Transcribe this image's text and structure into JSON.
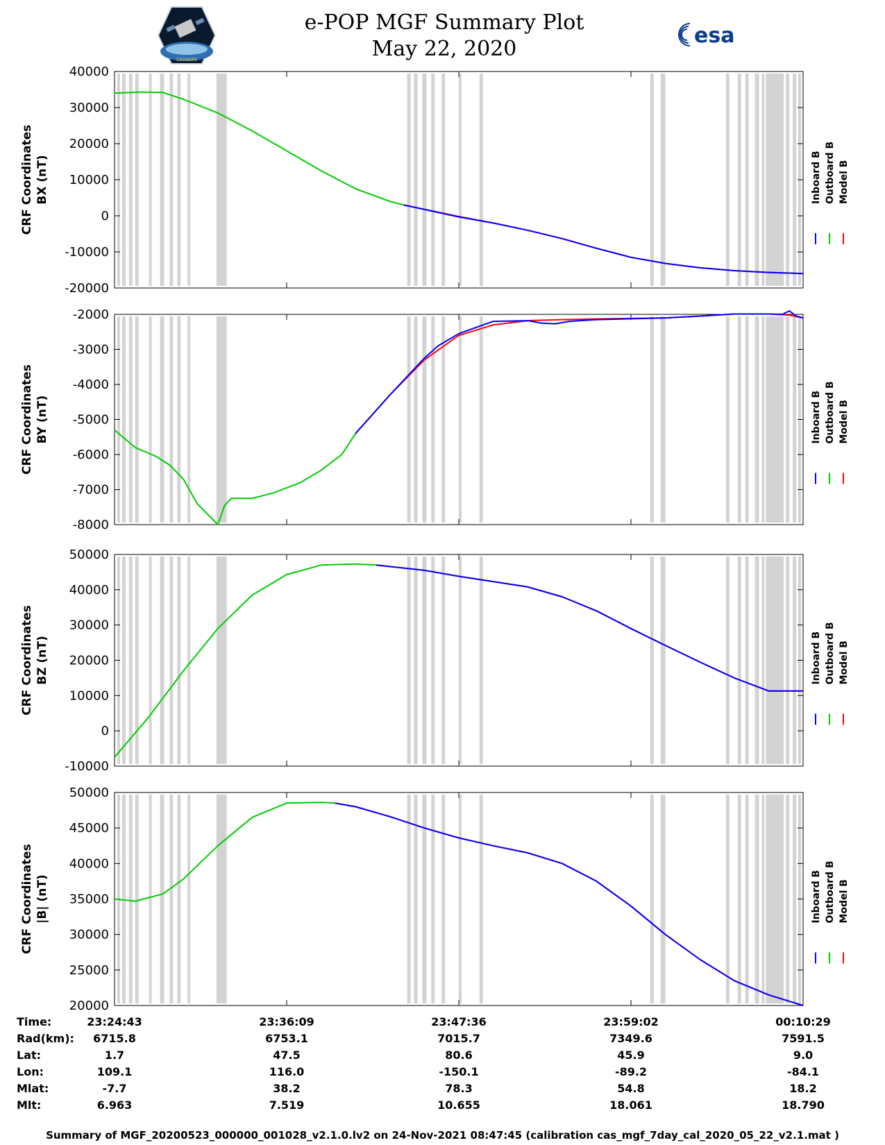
{
  "title": "e-POP MGF Summary Plot",
  "date": "May 22, 2020",
  "esa_logo_text": "esa",
  "mission_logo_text": "CASSIOPE",
  "colors": {
    "inboard": "#0000ff",
    "outboard": "#00cc00",
    "model": "#ff0000",
    "gap_shading": "#d3d3d3"
  },
  "chart_data": [
    {
      "type": "line",
      "id": "bx",
      "ylabel": "CRF Coordinates",
      "ylabel2": "BX (nT)",
      "ylim": [
        -20000,
        40000
      ],
      "yticks": [
        40000,
        30000,
        20000,
        10000,
        0,
        -10000,
        -20000
      ],
      "legend": [
        "Inboard B",
        "Outboard B",
        "Model B"
      ],
      "series": [
        {
          "name": "Outboard B",
          "x": [
            0,
            0.04,
            0.07,
            0.1,
            0.15,
            0.2,
            0.25,
            0.3,
            0.35,
            0.4,
            0.42
          ],
          "values": [
            34000,
            34300,
            34200,
            32300,
            28500,
            23500,
            18000,
            12500,
            7500,
            4000,
            3000
          ]
        },
        {
          "name": "Model B",
          "x": [
            0.42,
            0.5,
            0.55,
            0.6,
            0.65,
            0.7,
            0.75,
            0.8,
            0.85,
            0.9,
            0.95,
            1.0
          ],
          "values": [
            3000,
            -200,
            -2000,
            -4000,
            -6300,
            -9000,
            -11500,
            -13200,
            -14400,
            -15200,
            -15700,
            -16000
          ]
        },
        {
          "name": "Inboard B",
          "x": [
            0.42,
            0.5,
            0.55,
            0.6,
            0.65,
            0.7,
            0.75,
            0.8,
            0.85,
            0.9,
            0.95,
            1.0
          ],
          "values": [
            3000,
            -300,
            -2000,
            -4000,
            -6300,
            -9000,
            -11500,
            -13200,
            -14400,
            -15200,
            -15700,
            -16000
          ]
        }
      ]
    },
    {
      "type": "line",
      "id": "by",
      "ylabel": "CRF Coordinates",
      "ylabel2": "BY (nT)",
      "ylim": [
        -8000,
        -2000
      ],
      "yticks": [
        -2000,
        -3000,
        -4000,
        -5000,
        -6000,
        -7000,
        -8000
      ],
      "legend": [
        "Inboard B",
        "Outboard B",
        "Model B"
      ],
      "series": [
        {
          "name": "Outboard B",
          "x": [
            0,
            0.03,
            0.06,
            0.08,
            0.1,
            0.12,
            0.15,
            0.16,
            0.17,
            0.2,
            0.23,
            0.27,
            0.3,
            0.33,
            0.35
          ],
          "values": [
            -5300,
            -5800,
            -6050,
            -6300,
            -6700,
            -7400,
            -8000,
            -7450,
            -7250,
            -7250,
            -7100,
            -6800,
            -6450,
            -6000,
            -5400
          ]
        },
        {
          "name": "Model B",
          "x": [
            0.35,
            0.4,
            0.45,
            0.5,
            0.55,
            0.6,
            0.65,
            0.7,
            0.8,
            0.85,
            0.9,
            0.95,
            0.98,
            1.0
          ],
          "values": [
            -5400,
            -4300,
            -3300,
            -2600,
            -2300,
            -2180,
            -2150,
            -2130,
            -2100,
            -2050,
            -1990,
            -1990,
            -2020,
            -2100
          ]
        },
        {
          "name": "Inboard B",
          "x": [
            0.35,
            0.4,
            0.45,
            0.47,
            0.5,
            0.55,
            0.6,
            0.62,
            0.64,
            0.66,
            0.7,
            0.8,
            0.85,
            0.9,
            0.95,
            0.97,
            0.98,
            0.99,
            1.0
          ],
          "values": [
            -5400,
            -4300,
            -3250,
            -2900,
            -2550,
            -2200,
            -2180,
            -2250,
            -2270,
            -2200,
            -2150,
            -2100,
            -2050,
            -1990,
            -1990,
            -2000,
            -1900,
            -2050,
            -2100
          ]
        }
      ]
    },
    {
      "type": "line",
      "id": "bz",
      "ylabel": "CRF Coordinates",
      "ylabel2": "BZ (nT)",
      "ylim": [
        -10000,
        50000
      ],
      "yticks": [
        50000,
        40000,
        30000,
        20000,
        10000,
        0,
        -10000
      ],
      "legend": [
        "Inboard B",
        "Outboard B",
        "Model B"
      ],
      "series": [
        {
          "name": "Outboard B",
          "x": [
            0,
            0.05,
            0.1,
            0.15,
            0.2,
            0.25,
            0.3,
            0.35,
            0.38
          ],
          "values": [
            -7500,
            4000,
            17000,
            29000,
            38500,
            44300,
            47000,
            47300,
            47000
          ]
        },
        {
          "name": "Model B",
          "x": [
            0.38,
            0.45,
            0.5,
            0.55,
            0.6,
            0.65,
            0.7,
            0.75,
            0.8,
            0.85,
            0.9,
            0.95,
            1.0
          ],
          "values": [
            47000,
            45500,
            43800,
            42300,
            40800,
            38000,
            34000,
            29000,
            24200,
            19500,
            15000,
            11300,
            11300
          ]
        },
        {
          "name": "Inboard B",
          "x": [
            0.38,
            0.45,
            0.5,
            0.55,
            0.6,
            0.65,
            0.7,
            0.75,
            0.8,
            0.85,
            0.9,
            0.95,
            1.0
          ],
          "values": [
            47000,
            45500,
            43800,
            42300,
            40800,
            38000,
            34000,
            29000,
            24200,
            19500,
            15000,
            11300,
            11300
          ]
        }
      ]
    },
    {
      "type": "line",
      "id": "bmag",
      "ylabel": "CRF Coordinates",
      "ylabel2": "|B| (nT)",
      "ylim": [
        20000,
        50000
      ],
      "yticks": [
        50000,
        45000,
        40000,
        35000,
        30000,
        25000,
        20000
      ],
      "legend": [
        "Inboard B",
        "Outboard B",
        "Model B"
      ],
      "series": [
        {
          "name": "Outboard B",
          "x": [
            0,
            0.03,
            0.07,
            0.1,
            0.15,
            0.2,
            0.25,
            0.3,
            0.32
          ],
          "values": [
            35000,
            34700,
            35700,
            37800,
            42500,
            46500,
            48500,
            48600,
            48500
          ]
        },
        {
          "name": "Model B",
          "x": [
            0.32,
            0.35,
            0.4,
            0.45,
            0.5,
            0.55,
            0.6,
            0.65,
            0.7,
            0.75,
            0.8,
            0.85,
            0.9,
            0.95,
            1.0
          ],
          "values": [
            48500,
            48000,
            46600,
            45000,
            43600,
            42500,
            41500,
            40000,
            37500,
            34000,
            30000,
            26500,
            23500,
            21500,
            20000
          ]
        },
        {
          "name": "Inboard B",
          "x": [
            0.32,
            0.35,
            0.4,
            0.45,
            0.5,
            0.55,
            0.6,
            0.65,
            0.7,
            0.75,
            0.8,
            0.85,
            0.9,
            0.95,
            1.0
          ],
          "values": [
            48500,
            48000,
            46600,
            45000,
            43600,
            42500,
            41500,
            40000,
            37500,
            34000,
            30000,
            26500,
            23500,
            21500,
            20000
          ]
        }
      ]
    }
  ],
  "gap_intervals": [
    [
      0.004,
      0.008
    ],
    [
      0.011,
      0.016
    ],
    [
      0.021,
      0.026
    ],
    [
      0.03,
      0.035
    ],
    [
      0.05,
      0.054
    ],
    [
      0.066,
      0.072
    ],
    [
      0.08,
      0.085
    ],
    [
      0.091,
      0.096
    ],
    [
      0.106,
      0.11
    ],
    [
      0.148,
      0.163
    ],
    [
      0.425,
      0.43
    ],
    [
      0.435,
      0.44
    ],
    [
      0.447,
      0.453
    ],
    [
      0.46,
      0.465
    ],
    [
      0.475,
      0.48
    ],
    [
      0.5,
      0.504
    ],
    [
      0.53,
      0.535
    ],
    [
      0.778,
      0.783
    ],
    [
      0.793,
      0.8
    ],
    [
      0.888,
      0.893
    ],
    [
      0.905,
      0.91
    ],
    [
      0.916,
      0.921
    ],
    [
      0.93,
      0.936
    ],
    [
      0.94,
      0.944
    ],
    [
      0.946,
      0.972
    ],
    [
      0.975,
      0.98
    ],
    [
      0.985,
      0.99
    ],
    [
      0.993,
      0.997
    ]
  ],
  "info_table": {
    "labels": [
      "Time:",
      "Rad(km):",
      "Lat:",
      "Lon:",
      "Mlat:",
      "Mlt:"
    ],
    "columns": [
      {
        "x": 0.0,
        "values": [
          "23:24:43",
          "6715.8",
          "1.7",
          "109.1",
          "-7.7",
          "6.963"
        ]
      },
      {
        "x": 0.25,
        "values": [
          "23:36:09",
          "6753.1",
          "47.5",
          "116.0",
          "38.2",
          "7.519"
        ]
      },
      {
        "x": 0.5,
        "values": [
          "23:47:36",
          "7015.7",
          "80.6",
          "-150.1",
          "78.3",
          "10.655"
        ]
      },
      {
        "x": 0.75,
        "values": [
          "23:59:02",
          "7349.6",
          "45.9",
          "-89.2",
          "54.8",
          "18.061"
        ]
      },
      {
        "x": 1.0,
        "values": [
          "00:10:29",
          "7591.5",
          "9.0",
          "-84.1",
          "18.2",
          "18.790"
        ]
      }
    ]
  },
  "footer": "Summary of MGF_20200523_000000_001028_v2.1.0.lv2 on 24-Nov-2021 08:47:45 (calibration cas_mgf_7day_cal_2020_05_22_v2.1.mat )"
}
